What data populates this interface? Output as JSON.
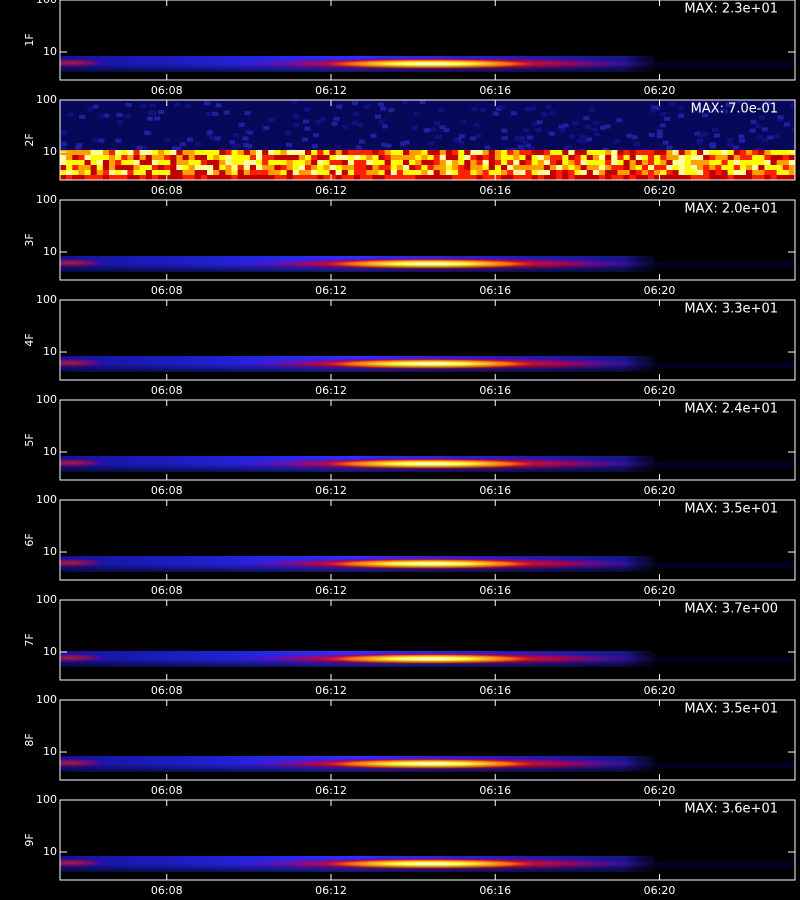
{
  "chart_data": [
    {
      "type": "spectrogram",
      "ylabel": "1F",
      "annotation": "MAX: 2.3e+01",
      "xlim": [
        365.4,
        383.3
      ],
      "xticks": [
        {
          "value": 368,
          "label": "06:08"
        },
        {
          "value": 372,
          "label": "06:12"
        },
        {
          "value": 376,
          "label": "06:16"
        },
        {
          "value": 380,
          "label": "06:20"
        }
      ],
      "ylim": [
        2.9,
        100
      ],
      "yticks": [
        10,
        100
      ],
      "log_y": true
    },
    {
      "type": "spectrogram",
      "ylabel": "2F",
      "annotation": "MAX: 7.0e-01",
      "xlim": [
        365.4,
        383.3
      ],
      "xticks": [
        {
          "value": 368,
          "label": "06:08"
        },
        {
          "value": 372,
          "label": "06:12"
        },
        {
          "value": 376,
          "label": "06:16"
        },
        {
          "value": 380,
          "label": "06:20"
        }
      ],
      "ylim": [
        2.9,
        100
      ],
      "yticks": [
        10,
        100
      ],
      "log_y": true
    },
    {
      "type": "spectrogram",
      "ylabel": "3F",
      "annotation": "MAX: 2.0e+01",
      "xlim": [
        365.4,
        383.3
      ],
      "xticks": [
        {
          "value": 368,
          "label": "06:08"
        },
        {
          "value": 372,
          "label": "06:12"
        },
        {
          "value": 376,
          "label": "06:16"
        },
        {
          "value": 380,
          "label": "06:20"
        }
      ],
      "ylim": [
        2.9,
        100
      ],
      "yticks": [
        10,
        100
      ],
      "log_y": true
    },
    {
      "type": "spectrogram",
      "ylabel": "4F",
      "annotation": "MAX: 3.3e+01",
      "xlim": [
        365.4,
        383.3
      ],
      "xticks": [
        {
          "value": 368,
          "label": "06:08"
        },
        {
          "value": 372,
          "label": "06:12"
        },
        {
          "value": 376,
          "label": "06:16"
        },
        {
          "value": 380,
          "label": "06:20"
        }
      ],
      "ylim": [
        2.9,
        100
      ],
      "yticks": [
        10,
        100
      ],
      "log_y": true
    },
    {
      "type": "spectrogram",
      "ylabel": "5F",
      "annotation": "MAX: 2.4e+01",
      "xlim": [
        365.4,
        383.3
      ],
      "xticks": [
        {
          "value": 368,
          "label": "06:08"
        },
        {
          "value": 372,
          "label": "06:12"
        },
        {
          "value": 376,
          "label": "06:16"
        },
        {
          "value": 380,
          "label": "06:20"
        }
      ],
      "ylim": [
        2.9,
        100
      ],
      "yticks": [
        10,
        100
      ],
      "log_y": true
    },
    {
      "type": "spectrogram",
      "ylabel": "6F",
      "annotation": "MAX: 3.5e+01",
      "xlim": [
        365.4,
        383.3
      ],
      "xticks": [
        {
          "value": 368,
          "label": "06:08"
        },
        {
          "value": 372,
          "label": "06:12"
        },
        {
          "value": 376,
          "label": "06:16"
        },
        {
          "value": 380,
          "label": "06:20"
        }
      ],
      "ylim": [
        2.9,
        100
      ],
      "yticks": [
        10,
        100
      ],
      "log_y": true
    },
    {
      "type": "spectrogram",
      "ylabel": "7F",
      "annotation": "MAX: 3.7e+00",
      "xlim": [
        365.4,
        383.3
      ],
      "xticks": [
        {
          "value": 368,
          "label": "06:08"
        },
        {
          "value": 372,
          "label": "06:12"
        },
        {
          "value": 376,
          "label": "06:16"
        },
        {
          "value": 380,
          "label": "06:20"
        }
      ],
      "ylim": [
        2.9,
        100
      ],
      "yticks": [
        10,
        100
      ],
      "log_y": true
    },
    {
      "type": "spectrogram",
      "ylabel": "8F",
      "annotation": "MAX: 3.5e+01",
      "xlim": [
        365.4,
        383.3
      ],
      "xticks": [
        {
          "value": 368,
          "label": "06:08"
        },
        {
          "value": 372,
          "label": "06:12"
        },
        {
          "value": 376,
          "label": "06:16"
        },
        {
          "value": 380,
          "label": "06:20"
        }
      ],
      "ylim": [
        2.9,
        100
      ],
      "yticks": [
        10,
        100
      ],
      "log_y": true
    },
    {
      "type": "spectrogram",
      "ylabel": "9F",
      "annotation": "MAX: 3.6e+01",
      "xlim": [
        365.4,
        383.3
      ],
      "xticks": [
        {
          "value": 368,
          "label": "06:08"
        },
        {
          "value": 372,
          "label": "06:12"
        },
        {
          "value": 376,
          "label": "06:16"
        },
        {
          "value": 380,
          "label": "06:20"
        }
      ],
      "ylim": [
        2.9,
        100
      ],
      "yticks": [
        10,
        100
      ],
      "log_y": true
    }
  ]
}
